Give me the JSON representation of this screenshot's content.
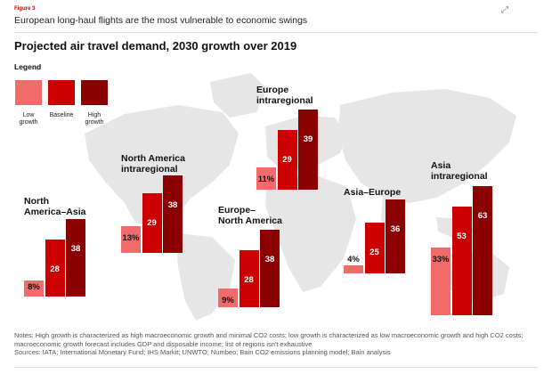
{
  "header": {
    "figure_label": "Figure 3",
    "title": "European long-haul flights are the most vulnerable to economic swings",
    "expand_icon": "expand-icon"
  },
  "legend": {
    "title": "Legend",
    "items": [
      {
        "label": "Low\ngrowth",
        "color": "#f26b6b"
      },
      {
        "label": "Baseline",
        "color": "#cc0000"
      },
      {
        "label": "High\ngrowth",
        "color": "#8b0000"
      }
    ]
  },
  "chart_data": {
    "type": "bar",
    "title": "Projected air travel demand, 2030 growth over 2019",
    "series_names": [
      "Low growth",
      "Baseline",
      "High growth"
    ],
    "unit": "%",
    "groups": [
      {
        "name": "North\nAmerica–Asia",
        "values": [
          8,
          28,
          38
        ]
      },
      {
        "name": "North America\nintraregional",
        "values": [
          13,
          29,
          38
        ]
      },
      {
        "name": "Europe\nintraregional",
        "values": [
          11,
          29,
          39
        ]
      },
      {
        "name": "Europe–\nNorth America",
        "values": [
          9,
          28,
          38
        ]
      },
      {
        "name": "Asia–Europe",
        "values": [
          4,
          25,
          36
        ]
      },
      {
        "name": "Asia\nintraregional",
        "values": [
          33,
          53,
          63
        ]
      }
    ]
  },
  "footer": {
    "notes": "Notes: High growth is characterized as high macroeconomic growth and minimal CO2 costs; low growth is characterized as low macroeconomic growth and high CO2 costs; macroeconomic growth forecast includes GDP and disposable income; list of regions isn't exhaustive",
    "sources": "Sources: IATA; International Monetary Fund; IHS Markit; UNWTO; Numbeo; Bain CO2 emissions planning model; Bain analysis"
  }
}
